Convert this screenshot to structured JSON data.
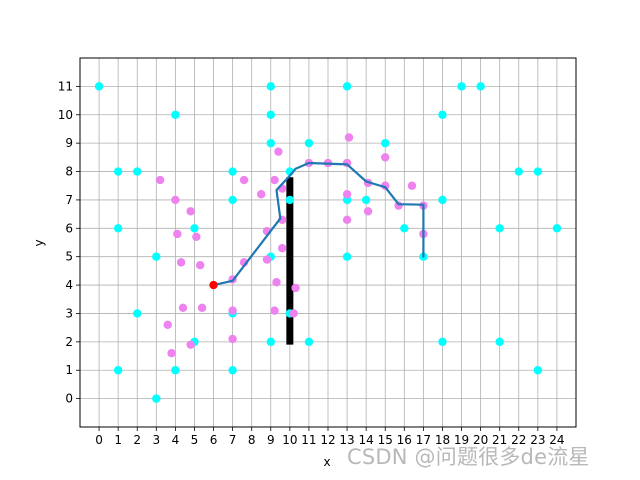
{
  "chart_data": {
    "type": "scatter",
    "title": "",
    "xlabel": "x",
    "ylabel": "y",
    "xlim": [
      -1,
      25
    ],
    "ylim": [
      -1,
      12
    ],
    "xticks": [
      0,
      1,
      2,
      3,
      4,
      5,
      6,
      7,
      8,
      9,
      10,
      11,
      12,
      13,
      14,
      15,
      16,
      17,
      18,
      19,
      20,
      21,
      22,
      23,
      24
    ],
    "yticks": [
      0,
      1,
      2,
      3,
      4,
      5,
      6,
      7,
      8,
      9,
      10,
      11
    ],
    "grid": true,
    "legend": "none",
    "obstacles": {
      "color": "#00ffff",
      "points": [
        [
          0,
          11
        ],
        [
          4,
          10
        ],
        [
          9,
          11
        ],
        [
          9,
          10
        ],
        [
          13,
          11
        ],
        [
          18,
          10
        ],
        [
          19,
          11
        ],
        [
          20,
          11
        ],
        [
          1,
          8
        ],
        [
          2,
          8
        ],
        [
          7,
          8
        ],
        [
          9,
          9
        ],
        [
          11,
          9
        ],
        [
          15,
          9
        ],
        [
          22,
          8
        ],
        [
          23,
          8
        ],
        [
          1,
          6
        ],
        [
          5,
          6
        ],
        [
          7,
          7
        ],
        [
          10,
          8
        ],
        [
          10,
          7
        ],
        [
          13,
          7
        ],
        [
          14,
          7
        ],
        [
          16,
          6
        ],
        [
          18,
          7
        ],
        [
          21,
          6
        ],
        [
          24,
          6
        ],
        [
          3,
          5
        ],
        [
          9,
          5
        ],
        [
          13,
          5
        ],
        [
          17,
          5
        ],
        [
          2,
          3
        ],
        [
          7,
          3
        ],
        [
          10,
          3
        ],
        [
          1,
          1
        ],
        [
          4,
          1
        ],
        [
          5,
          2
        ],
        [
          7,
          1
        ],
        [
          9,
          2
        ],
        [
          11,
          2
        ],
        [
          18,
          2
        ],
        [
          21,
          2
        ],
        [
          23,
          1
        ],
        [
          3,
          0
        ]
      ]
    },
    "samples": {
      "color": "#ee82ee",
      "points": [
        [
          3.2,
          7.7
        ],
        [
          4.0,
          7.0
        ],
        [
          4.8,
          6.6
        ],
        [
          4.1,
          5.8
        ],
        [
          5.1,
          5.7
        ],
        [
          4.3,
          4.8
        ],
        [
          5.3,
          4.7
        ],
        [
          4.4,
          3.2
        ],
        [
          5.4,
          3.2
        ],
        [
          3.6,
          2.6
        ],
        [
          3.8,
          1.6
        ],
        [
          4.8,
          1.9
        ],
        [
          7.0,
          3.1
        ],
        [
          7.0,
          2.1
        ],
        [
          7.0,
          4.2
        ],
        [
          7.6,
          4.8
        ],
        [
          7.6,
          7.7
        ],
        [
          8.5,
          7.2
        ],
        [
          8.8,
          4.9
        ],
        [
          8.8,
          5.9
        ],
        [
          9.2,
          7.7
        ],
        [
          9.3,
          4.1
        ],
        [
          9.2,
          3.1
        ],
        [
          9.4,
          8.7
        ],
        [
          9.6,
          5.3
        ],
        [
          9.6,
          6.3
        ],
        [
          9.6,
          7.4
        ],
        [
          10.2,
          3.0
        ],
        [
          10.3,
          3.9
        ],
        [
          11.0,
          8.3
        ],
        [
          12.0,
          8.3
        ],
        [
          13.0,
          8.3
        ],
        [
          13.1,
          9.2
        ],
        [
          13.0,
          7.2
        ],
        [
          13.0,
          6.3
        ],
        [
          14.1,
          6.6
        ],
        [
          14.1,
          7.6
        ],
        [
          15.0,
          7.5
        ],
        [
          15.0,
          8.5
        ],
        [
          15.7,
          6.8
        ],
        [
          16.4,
          7.5
        ],
        [
          17.0,
          6.8
        ],
        [
          17.0,
          5.8
        ]
      ]
    },
    "path": {
      "color": "#1f77b4",
      "points": [
        [
          6,
          4
        ],
        [
          7,
          4.15
        ],
        [
          9.5,
          6.35
        ],
        [
          9.3,
          7.35
        ],
        [
          10,
          7.85
        ],
        [
          10.3,
          8.1
        ],
        [
          11,
          8.3
        ],
        [
          13,
          8.25
        ],
        [
          14,
          7.65
        ],
        [
          15,
          7.45
        ],
        [
          15.7,
          6.85
        ],
        [
          17,
          6.83
        ],
        [
          17,
          5
        ]
      ]
    },
    "start": {
      "color": "#ff0000",
      "point": [
        6,
        4
      ]
    },
    "wall": {
      "color": "#000000",
      "x": 10,
      "y_range": [
        1.9,
        7.8
      ]
    }
  },
  "watermark": "CSDN @问题很多de流星"
}
